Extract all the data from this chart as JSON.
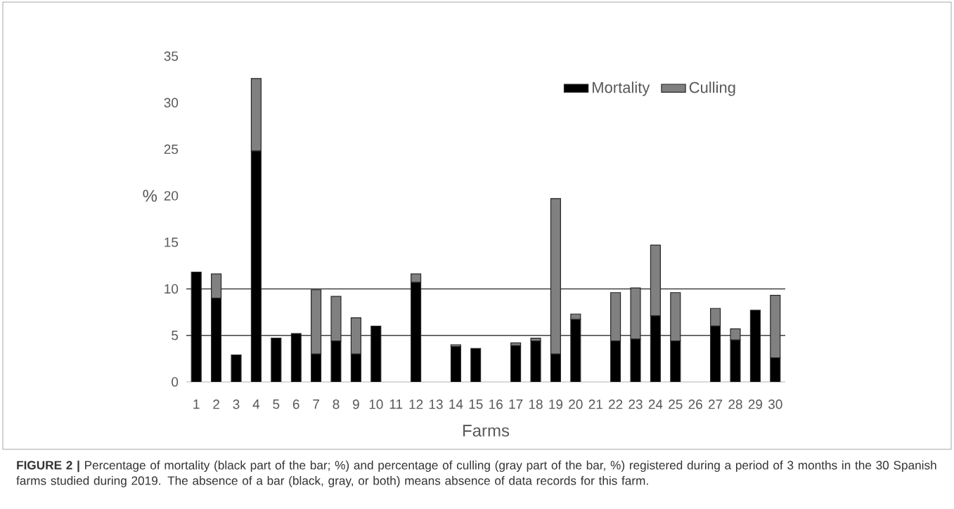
{
  "chart_data": {
    "type": "bar",
    "stacked": true,
    "xlabel": "Farms",
    "ylabel": "%",
    "categories": [
      "1",
      "2",
      "3",
      "4",
      "5",
      "6",
      "7",
      "8",
      "9",
      "10",
      "11",
      "12",
      "13",
      "14",
      "15",
      "16",
      "17",
      "18",
      "19",
      "20",
      "21",
      "22",
      "23",
      "24",
      "25",
      "26",
      "27",
      "28",
      "29",
      "30"
    ],
    "series": [
      {
        "name": "Mortality",
        "color": "#000000",
        "values": [
          11.8,
          9.0,
          2.9,
          24.8,
          4.7,
          5.2,
          3.0,
          4.4,
          3.0,
          6.0,
          null,
          10.7,
          null,
          3.8,
          3.6,
          null,
          3.9,
          4.4,
          3.0,
          6.7,
          null,
          4.4,
          4.6,
          7.1,
          4.4,
          null,
          6.0,
          4.5,
          7.7,
          2.6
        ]
      },
      {
        "name": "Culling",
        "color": "#808080",
        "values": [
          null,
          2.6,
          null,
          7.8,
          null,
          null,
          6.9,
          4.8,
          3.9,
          null,
          null,
          0.9,
          null,
          0.2,
          null,
          null,
          0.3,
          0.3,
          16.7,
          0.6,
          null,
          5.2,
          5.5,
          7.6,
          5.2,
          null,
          1.9,
          1.2,
          null,
          6.7
        ]
      }
    ],
    "ylim": [
      0,
      35
    ],
    "yticks": [
      0,
      5,
      10,
      15,
      20,
      25,
      30,
      35
    ],
    "ref_lines": [
      {
        "axis": "y",
        "value": 5
      },
      {
        "axis": "y",
        "value": 10
      }
    ],
    "legend": "top right",
    "annotations": [
      "**FIGURE 2 |** Percentage of mortality (black part of the bar; %) and percentage of culling (gray part of the bar, %) registered during a period of 3 months in the 30 Spanish farms studied during 2019. The absence of a bar (black, gray, or both) means absence of data records for this farm."
    ]
  }
}
